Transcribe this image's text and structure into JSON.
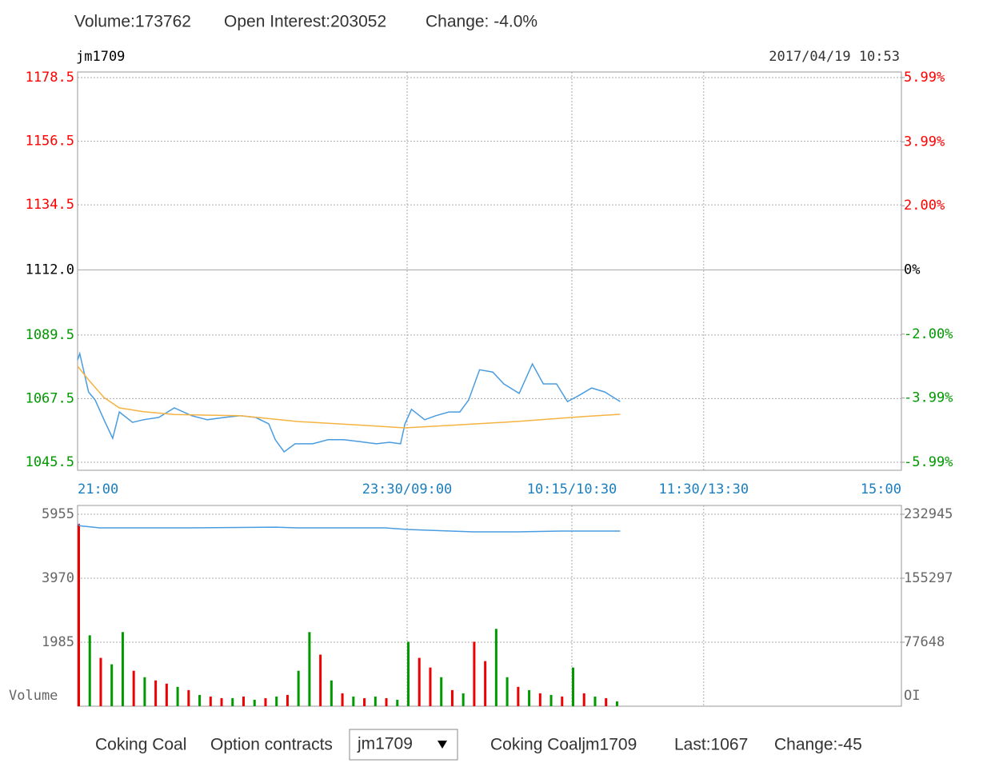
{
  "header": {
    "volume": "Volume:173762",
    "open_interest": "Open Interest:203052",
    "change": "Change: -4.0%"
  },
  "chart_data": [
    {
      "type": "line",
      "symbol": "jm1709",
      "datetime": "2017/04/19 10:53",
      "xlim": [
        0,
        375
      ],
      "xticks": [
        {
          "value": 0,
          "label": "21:00"
        },
        {
          "value": 150,
          "label": "23:30/09:00"
        },
        {
          "value": 225,
          "label": "10:15/10:30"
        },
        {
          "value": 285,
          "label": "11:30/13:30"
        },
        {
          "value": 375,
          "label": "15:00"
        }
      ],
      "ylim": [
        1045.5,
        1178.5
      ],
      "yticks": [
        1178.5,
        1156.5,
        1134.5,
        {
          "value": 1112,
          "label": "1112.0"
        },
        1089.5,
        1067.5,
        1045.5
      ],
      "y2lim": [
        -5.99,
        5.99
      ],
      "y2ticks": [
        {
          "value": 5.99,
          "label": "5.99%"
        },
        {
          "value": 3.99,
          "label": "3.99%"
        },
        {
          "value": 2,
          "label": "2.00%"
        },
        {
          "value": 0,
          "label": "0%"
        },
        {
          "value": -2,
          "label": "-2.00%"
        },
        {
          "value": -3.99,
          "label": "-3.99%"
        },
        {
          "value": -5.99,
          "label": "-5.99%"
        }
      ],
      "tick_colors": [
        "#ff0000",
        "#ff0000",
        "#ff0000",
        "#000000",
        "#009900",
        "#009900",
        "#009900"
      ],
      "grid": true,
      "series": [
        {
          "color": "#4a9ce0",
          "x": [
            0,
            1,
            5,
            8,
            12,
            16,
            19,
            25,
            30,
            37,
            44,
            52,
            59,
            67,
            74,
            81,
            87,
            90,
            94,
            99,
            107,
            114,
            121,
            128,
            136,
            142,
            147,
            149,
            152,
            158,
            163,
            169,
            174,
            178,
            183,
            189,
            194,
            201,
            207,
            212,
            218,
            223,
            228,
            234,
            240,
            247
          ],
          "values": [
            1080.9,
            1083.1,
            1069.8,
            1067,
            1060.2,
            1053.8,
            1062.9,
            1059.3,
            1060.2,
            1061,
            1064.3,
            1061.6,
            1060.2,
            1061,
            1061.6,
            1061,
            1058.8,
            1053.3,
            1049.1,
            1051.9,
            1051.9,
            1053.3,
            1053.3,
            1052.7,
            1051.9,
            1052.4,
            1051.9,
            1058.8,
            1063.8,
            1060.2,
            1061.6,
            1062.9,
            1062.9,
            1067,
            1077.5,
            1076.7,
            1072.6,
            1069.3,
            1079.5,
            1072.6,
            1072.6,
            1066.5,
            1068.5,
            1071.2,
            1069.8,
            1066.5
          ]
        },
        {
          "color": "#f5b342",
          "x": [
            0,
            5,
            12,
            19,
            30,
            44,
            74,
            100,
            130,
            149,
            170,
            200,
            230,
            247
          ],
          "values": [
            1078.7,
            1074,
            1067.9,
            1064.3,
            1063,
            1062,
            1061.6,
            1059.6,
            1058.3,
            1057.4,
            1058.3,
            1059.6,
            1061.3,
            1062.1
          ]
        }
      ]
    },
    {
      "type": "bar",
      "y_label": "Volume",
      "y2_label": "OI",
      "xlim": [
        0,
        375
      ],
      "xticks": [
        0,
        150,
        225,
        285,
        375
      ],
      "ylim": [
        0,
        5955
      ],
      "yticks": [
        5955,
        3970,
        1985
      ],
      "y2lim": [
        0,
        232945
      ],
      "y2ticks": [
        232945,
        155297,
        77648
      ],
      "grid": true,
      "series": [
        {
          "x": [
            0,
            5,
            10,
            15,
            20,
            25,
            30,
            35,
            40,
            45,
            50,
            55,
            60,
            65,
            70,
            75,
            80,
            85,
            90,
            95,
            100,
            105,
            110,
            115,
            120,
            125,
            130,
            135,
            140,
            145,
            150,
            155,
            160,
            165,
            170,
            175,
            180,
            185,
            190,
            195,
            200,
            205,
            210,
            215,
            220,
            225,
            230,
            235,
            240,
            245
          ],
          "values": [
            5660,
            2200,
            1500,
            1300,
            2300,
            1100,
            900,
            800,
            700,
            600,
            500,
            350,
            300,
            250,
            250,
            300,
            200,
            250,
            300,
            350,
            1100,
            2300,
            1600,
            800,
            400,
            300,
            250,
            300,
            250,
            200,
            2000,
            1500,
            1200,
            900,
            500,
            400,
            2000,
            1400,
            2400,
            900,
            600,
            500,
            400,
            350,
            300,
            1200,
            400,
            300,
            250,
            150
          ],
          "colors": [
            "#ee0000",
            "#009900",
            "#ee0000",
            "#009900",
            "#009900",
            "#ee0000",
            "#009900",
            "#ee0000",
            "#ee0000",
            "#009900",
            "#ee0000",
            "#009900",
            "#ee0000",
            "#ee0000",
            "#009900",
            "#ee0000",
            "#009900",
            "#ee0000",
            "#009900",
            "#ee0000",
            "#009900",
            "#009900",
            "#ee0000",
            "#009900",
            "#ee0000",
            "#009900",
            "#ee0000",
            "#009900",
            "#ee0000",
            "#009900",
            "#009900",
            "#ee0000",
            "#ee0000",
            "#009900",
            "#ee0000",
            "#009900",
            "#ee0000",
            "#ee0000",
            "#009900",
            "#009900",
            "#ee0000",
            "#009900",
            "#ee0000",
            "#009900",
            "#ee0000",
            "#009900",
            "#ee0000",
            "#009900",
            "#ee0000",
            "#009900"
          ]
        },
        {
          "axis": "y2",
          "color": "#4a9ce0",
          "x": [
            0,
            1,
            10,
            50,
            90,
            100,
            140,
            150,
            180,
            200,
            220,
            247
          ],
          "values": [
            221300,
            219000,
            216400,
            216400,
            217300,
            216400,
            216400,
            214500,
            211600,
            211600,
            212600,
            212600
          ]
        }
      ]
    }
  ],
  "footer": {
    "product": "Coking Coal",
    "option_label": "Option contracts",
    "selected": "jm1709",
    "quote_name": "Coking Coaljm1709",
    "last": "Last:1067",
    "change": "Change:-45"
  }
}
